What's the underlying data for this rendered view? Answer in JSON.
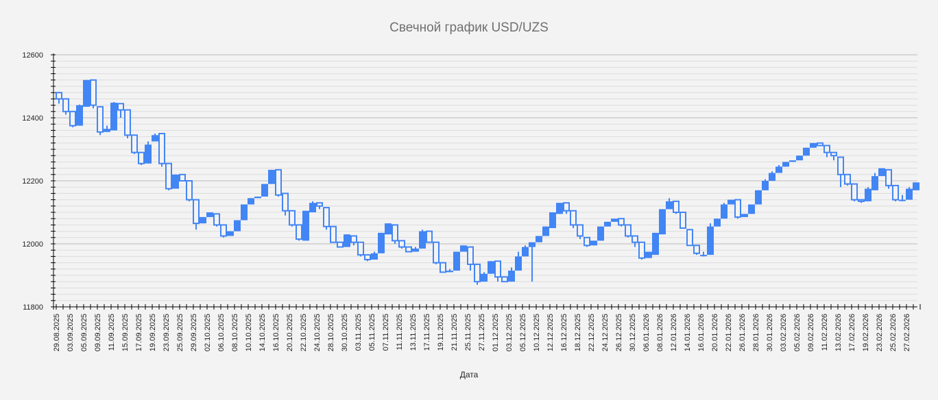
{
  "chart_data": {
    "type": "candlestick",
    "title": "Свечной график USD/UZS",
    "xlabel": "Дата",
    "ylabel": "",
    "ylim": [
      11800,
      12600
    ],
    "yticks": [
      11800,
      12000,
      12200,
      12400,
      12600
    ],
    "grid": true,
    "colors": {
      "candle": "#4285f4",
      "grid_major": "#b8b8b8",
      "grid_minor": "#dcdcdc",
      "axis": "#000000",
      "background": "#f3f3f3"
    },
    "legend": null,
    "x_tick_labels": [
      "29.08.2025",
      "03.09.2025",
      "05.09.2025",
      "09.09.2025",
      "11.09.2025",
      "15.09.2025",
      "17.09.2025",
      "19.09.2025",
      "23.09.2025",
      "25.09.2025",
      "29.09.2025",
      "02.10.2025",
      "06.10.2025",
      "08.10.2025",
      "10.10.2025",
      "14.10.2025",
      "16.10.2025",
      "20.10.2025",
      "22.10.2025",
      "24.10.2025",
      "28.10.2025",
      "30.10.2025",
      "03.11.2025",
      "05.11.2025",
      "07.11.2025",
      "11.11.2025",
      "13.11.2025",
      "17.11.2025",
      "19.11.2025",
      "21.11.2025",
      "25.11.2025",
      "27.11.2025",
      "01.12.2025",
      "03.12.2025",
      "05.12.2025",
      "10.12.2025",
      "12.12.2025",
      "16.12.2025",
      "18.12.2025",
      "22.12.2025",
      "24.12.2025",
      "26.12.2025",
      "30.12.2025",
      "06.01.2026",
      "08.01.2026",
      "12.01.2026",
      "14.01.2026",
      "16.01.2026",
      "20.01.2026",
      "22.01.2026",
      "26.01.2026",
      "28.01.2026",
      "30.01.2026",
      "03.02.2026",
      "05.02.2026",
      "09.02.2026",
      "11.02.2026",
      "13.02.2026",
      "17.02.2026",
      "19.02.2026",
      "23.02.2026",
      "25.02.2026",
      "27.02.2026"
    ],
    "ohlc": [
      [
        12480,
        12482,
        12445,
        12460
      ],
      [
        12460,
        12462,
        12410,
        12420
      ],
      [
        12420,
        12422,
        12370,
        12375
      ],
      [
        12375,
        12442,
        12375,
        12440
      ],
      [
        12435,
        12520,
        12435,
        12520
      ],
      [
        12520,
        12520,
        12430,
        12440
      ],
      [
        12435,
        12437,
        12345,
        12355
      ],
      [
        12355,
        12375,
        12355,
        12365
      ],
      [
        12360,
        12450,
        12360,
        12448
      ],
      [
        12445,
        12445,
        12400,
        12425
      ],
      [
        12425,
        12425,
        12335,
        12345
      ],
      [
        12345,
        12345,
        12285,
        12290
      ],
      [
        12290,
        12290,
        12250,
        12255
      ],
      [
        12255,
        12325,
        12255,
        12315
      ],
      [
        12325,
        12350,
        12325,
        12345
      ],
      [
        12350,
        12350,
        12245,
        12255
      ],
      [
        12255,
        12255,
        12170,
        12175
      ],
      [
        12175,
        12220,
        12175,
        12220
      ],
      [
        12220,
        12220,
        12200,
        12200
      ],
      [
        12200,
        12200,
        12135,
        12140
      ],
      [
        12140,
        12140,
        12045,
        12065
      ],
      [
        12065,
        12085,
        12065,
        12085
      ],
      [
        12085,
        12100,
        12085,
        12100
      ],
      [
        12095,
        12095,
        12055,
        12060
      ],
      [
        12060,
        12060,
        12020,
        12025
      ],
      [
        12025,
        12040,
        12025,
        12040
      ],
      [
        12040,
        12075,
        12040,
        12075
      ],
      [
        12075,
        12125,
        12075,
        12125
      ],
      [
        12125,
        12145,
        12125,
        12145
      ],
      [
        12145,
        12150,
        12145,
        12150
      ],
      [
        12150,
        12190,
        12150,
        12190
      ],
      [
        12190,
        12235,
        12190,
        12235
      ],
      [
        12235,
        12235,
        12150,
        12155
      ],
      [
        12160,
        12160,
        12090,
        12105
      ],
      [
        12105,
        12105,
        12055,
        12060
      ],
      [
        12060,
        12060,
        12010,
        12015
      ],
      [
        12010,
        12105,
        12010,
        12105
      ],
      [
        12100,
        12135,
        12100,
        12130
      ],
      [
        12130,
        12130,
        12110,
        12120
      ],
      [
        12115,
        12115,
        12045,
        12055
      ],
      [
        12055,
        12055,
        12005,
        12005
      ],
      [
        12005,
        12005,
        11990,
        11990
      ],
      [
        11990,
        12030,
        11990,
        12030
      ],
      [
        12025,
        12025,
        11995,
        12005
      ],
      [
        12005,
        12005,
        11960,
        11965
      ],
      [
        11965,
        11965,
        11945,
        11950
      ],
      [
        11950,
        11975,
        11950,
        11970
      ],
      [
        11970,
        12035,
        11970,
        12035
      ],
      [
        12030,
        12065,
        12030,
        12065
      ],
      [
        12060,
        12060,
        12000,
        12010
      ],
      [
        12010,
        12010,
        11985,
        11990
      ],
      [
        11990,
        11990,
        11975,
        11975
      ],
      [
        11975,
        11990,
        11975,
        11985
      ],
      [
        11985,
        12045,
        11985,
        12040
      ],
      [
        12040,
        12040,
        12005,
        12005
      ],
      [
        12005,
        12005,
        11935,
        11940
      ],
      [
        11940,
        11940,
        11910,
        11910
      ],
      [
        11910,
        11920,
        11910,
        11915
      ],
      [
        11915,
        11975,
        11915,
        11975
      ],
      [
        11975,
        11995,
        11975,
        11995
      ],
      [
        11990,
        11990,
        11915,
        11935
      ],
      [
        11935,
        11935,
        11870,
        11880
      ],
      [
        11880,
        11910,
        11880,
        11905
      ],
      [
        11905,
        11945,
        11905,
        11945
      ],
      [
        11945,
        11945,
        11880,
        11895
      ],
      [
        11895,
        11895,
        11880,
        11880
      ],
      [
        11880,
        11925,
        11880,
        11915
      ],
      [
        11915,
        11975,
        11915,
        11960
      ],
      [
        11960,
        11995,
        11960,
        11990
      ],
      [
        11990,
        12005,
        11880,
        12005
      ],
      [
        12005,
        12025,
        12005,
        12025
      ],
      [
        12025,
        12055,
        12025,
        12055
      ],
      [
        12050,
        12100,
        12050,
        12100
      ],
      [
        12095,
        12130,
        12095,
        12130
      ],
      [
        12130,
        12130,
        12095,
        12105
      ],
      [
        12105,
        12105,
        12050,
        12060
      ],
      [
        12060,
        12060,
        12015,
        12025
      ],
      [
        12020,
        12020,
        11990,
        11995
      ],
      [
        11995,
        12010,
        11995,
        12010
      ],
      [
        12010,
        12055,
        12010,
        12055
      ],
      [
        12055,
        12070,
        12055,
        12070
      ],
      [
        12070,
        12080,
        12070,
        12080
      ],
      [
        12080,
        12080,
        12055,
        12060
      ],
      [
        12060,
        12060,
        12020,
        12025
      ],
      [
        12025,
        12025,
        11990,
        12005
      ],
      [
        12005,
        12005,
        11950,
        11955
      ],
      [
        11955,
        11975,
        11955,
        11975
      ],
      [
        11965,
        12035,
        11965,
        12035
      ],
      [
        12030,
        12110,
        12030,
        12110
      ],
      [
        12110,
        12145,
        12110,
        12135
      ],
      [
        12135,
        12135,
        12095,
        12100
      ],
      [
        12100,
        12100,
        12050,
        12050
      ],
      [
        12045,
        12045,
        11995,
        11995
      ],
      [
        11995,
        11995,
        11965,
        11970
      ],
      [
        11965,
        11975,
        11960,
        11965
      ],
      [
        11965,
        12065,
        11965,
        12055
      ],
      [
        12055,
        12080,
        12055,
        12080
      ],
      [
        12080,
        12130,
        12080,
        12125
      ],
      [
        12125,
        12140,
        12125,
        12140
      ],
      [
        12140,
        12140,
        12080,
        12085
      ],
      [
        12085,
        12095,
        12085,
        12095
      ],
      [
        12095,
        12125,
        12095,
        12125
      ],
      [
        12125,
        12170,
        12125,
        12170
      ],
      [
        12170,
        12205,
        12170,
        12200
      ],
      [
        12200,
        12230,
        12200,
        12225
      ],
      [
        12225,
        12250,
        12225,
        12245
      ],
      [
        12245,
        12260,
        12245,
        12260
      ],
      [
        12260,
        12265,
        12260,
        12265
      ],
      [
        12265,
        12280,
        12265,
        12280
      ],
      [
        12280,
        12305,
        12280,
        12305
      ],
      [
        12305,
        12320,
        12305,
        12320
      ],
      [
        12320,
        12320,
        12310,
        12312
      ],
      [
        12312,
        12312,
        12275,
        12290
      ],
      [
        12290,
        12290,
        12265,
        12280
      ],
      [
        12275,
        12275,
        12180,
        12220
      ],
      [
        12220,
        12220,
        12185,
        12190
      ],
      [
        12190,
        12190,
        12135,
        12140
      ],
      [
        12140,
        12140,
        12130,
        12135
      ],
      [
        12135,
        12180,
        12135,
        12175
      ],
      [
        12170,
        12225,
        12170,
        12215
      ],
      [
        12215,
        12240,
        12215,
        12240
      ],
      [
        12235,
        12235,
        12175,
        12185
      ],
      [
        12185,
        12185,
        12135,
        12140
      ],
      [
        12140,
        12155,
        12135,
        12140
      ],
      [
        12140,
        12180,
        12140,
        12175
      ],
      [
        12170,
        12195,
        12170,
        12195
      ]
    ]
  }
}
